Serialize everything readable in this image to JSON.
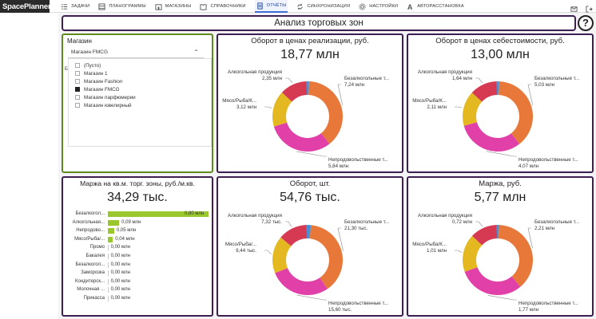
{
  "app": {
    "logo": "SpacePlanner"
  },
  "nav": [
    {
      "label": "ЗАДАЧИ",
      "icon": "tasks-icon"
    },
    {
      "label": "ПЛАНОГРАММЫ",
      "icon": "planogram-icon"
    },
    {
      "label": "МАГАЗИНЫ",
      "icon": "stores-icon"
    },
    {
      "label": "СПРАВОЧНИКИ",
      "icon": "book-icon"
    },
    {
      "label": "ОТЧЁТЫ",
      "icon": "report-icon",
      "active": true
    },
    {
      "label": "СИНХРОНИЗАЦИЯ",
      "icon": "sync-icon"
    },
    {
      "label": "НАСТРОЙКИ",
      "icon": "gear-icon"
    },
    {
      "label": "АВТОРАССТАНОВКА",
      "icon": "auto-placement-icon"
    }
  ],
  "page": {
    "title": "Анализ торговых зон",
    "help": "?"
  },
  "colors": {
    "orange": "#e8783a",
    "pink": "#e040a8",
    "yellow": "#e3b820",
    "red": "#d63a53",
    "purple": "#8a4bb8",
    "blue": "#4a8ed8",
    "green": "#9ac62e",
    "border": "#3d1f52"
  },
  "filter": {
    "label": "Магазин",
    "selected": "Магазин FMCG",
    "side_mark": "Б",
    "options": [
      {
        "label": "(Пусто)",
        "checked": false
      },
      {
        "label": "Магазин 1",
        "checked": false
      },
      {
        "label": "Магазин Fashion",
        "checked": false
      },
      {
        "label": "Магазин FMCG",
        "checked": true
      },
      {
        "label": "Магазин парфюмерии",
        "checked": false
      },
      {
        "label": "Магазин ювелирный",
        "checked": false
      }
    ]
  },
  "cards": {
    "rev": {
      "title": "Оборот в ценах реализации, руб.",
      "value": "18,77 млн"
    },
    "cost": {
      "title": "Оборот в ценах себестоимости, руб.",
      "value": "13,00 млн"
    },
    "margin_sqm": {
      "title": "Маржа на кв.м. торг. зоны, руб./м.кв.",
      "value": "34,29 тыс."
    },
    "qty": {
      "title": "Оборот, шт.",
      "value": "54,76 тыс."
    },
    "margin": {
      "title": "Маржа, руб.",
      "value": "5,77 млн"
    }
  },
  "chart_data": [
    {
      "type": "pie",
      "title": "Оборот в ценах реализации, руб.",
      "categories": [
        "Безалкогольные т...",
        "Непродовольственные т...",
        "Мясо/Рыба/К...",
        "Алкогольная продукция",
        "Прочие"
      ],
      "values": [
        7.24,
        5.84,
        3.12,
        2.35,
        0.22
      ],
      "labels": [
        "Безалкогольные т...\n7,24 млн",
        "Непродовольственные т...\n5,84 млн",
        "Мясо/Рыба/К...\n3,12 млн",
        "Алкогольная продукция\n2,35 млн",
        ""
      ],
      "colors": [
        "#e8783a",
        "#e040a8",
        "#e3b820",
        "#d63a53",
        "#4a8ed8"
      ]
    },
    {
      "type": "pie",
      "title": "Оборот в ценах себестоимости, руб.",
      "categories": [
        "Безалкогольные т...",
        "Непродовольственные т...",
        "Мясо/Рыба/К...",
        "Алкогольная продукция",
        "Прочие"
      ],
      "values": [
        5.03,
        4.07,
        2.11,
        1.64,
        0.15
      ],
      "labels": [
        "Безалкогольные т...\n5,03 млн",
        "Непродовольственные т...\n4,07 млн",
        "Мясо/Рыба/К...\n2,11 млн",
        "Алкогольная продукция\n1,64 млн",
        ""
      ],
      "colors": [
        "#e8783a",
        "#e040a8",
        "#e3b820",
        "#d63a53",
        "#4a8ed8"
      ]
    },
    {
      "type": "bar",
      "orientation": "horizontal",
      "title": "Маржа на кв.м. торг. зоны, руб./м.кв.",
      "categories": [
        "Безалкогол...",
        "Алкогольная...",
        "Непродово...",
        "Мясо/Рыба/...",
        "Промо",
        "Бакалея",
        "Безалкогол...",
        "Заморозка",
        "Кондитерск...",
        "Молочная ...",
        "Прикасса"
      ],
      "values": [
        0.8,
        0.09,
        0.05,
        0.04,
        0.0,
        0.0,
        0.0,
        0.0,
        0.0,
        0.0,
        0.0
      ],
      "value_labels": [
        "0,80 млн",
        "0,09 млн",
        "0,05 млн",
        "0,04 млн",
        "0,00 млн",
        "0,00 млн",
        "0,00 млн",
        "0,00 млн",
        "0,00 млн",
        "0,00 млн",
        "0,00 млн"
      ],
      "xlim": [
        0,
        0.8
      ]
    },
    {
      "type": "pie",
      "title": "Оборот, шт.",
      "categories": [
        "Безалкогольные т...",
        "Непродовольственные т...",
        "Мясо/Рыба/...",
        "Алкогольная продукция",
        "Прочие"
      ],
      "values": [
        21.3,
        15.6,
        9.44,
        7.32,
        1.1
      ],
      "labels": [
        "Безалкогольные т...\n21,30 тыс.",
        "Непродовольственные т...\n15,60 тыс.",
        "Мясо/Рыба/...\n9,44 тыс.",
        "Алкогольная продукция\n7,32 тыс.",
        ""
      ],
      "colors": [
        "#e8783a",
        "#e040a8",
        "#e3b820",
        "#d63a53",
        "#4a8ed8"
      ]
    },
    {
      "type": "pie",
      "title": "Маржа, руб.",
      "categories": [
        "Безалкогольные т...",
        "Непродовольственные т...",
        "Мясо/Рыба/К...",
        "Алкогольная продукция",
        "Прочие"
      ],
      "values": [
        2.21,
        1.77,
        1.01,
        0.72,
        0.06
      ],
      "labels": [
        "Безалкогольные т...\n2,21 млн",
        "Непродовольственные т...\n1,77 млн",
        "Мясо/Рыба/К...\n1,01 млн",
        "Алкогольная продукция\n0,72 млн",
        ""
      ],
      "colors": [
        "#e8783a",
        "#e040a8",
        "#e3b820",
        "#d63a53",
        "#4a8ed8"
      ]
    }
  ]
}
